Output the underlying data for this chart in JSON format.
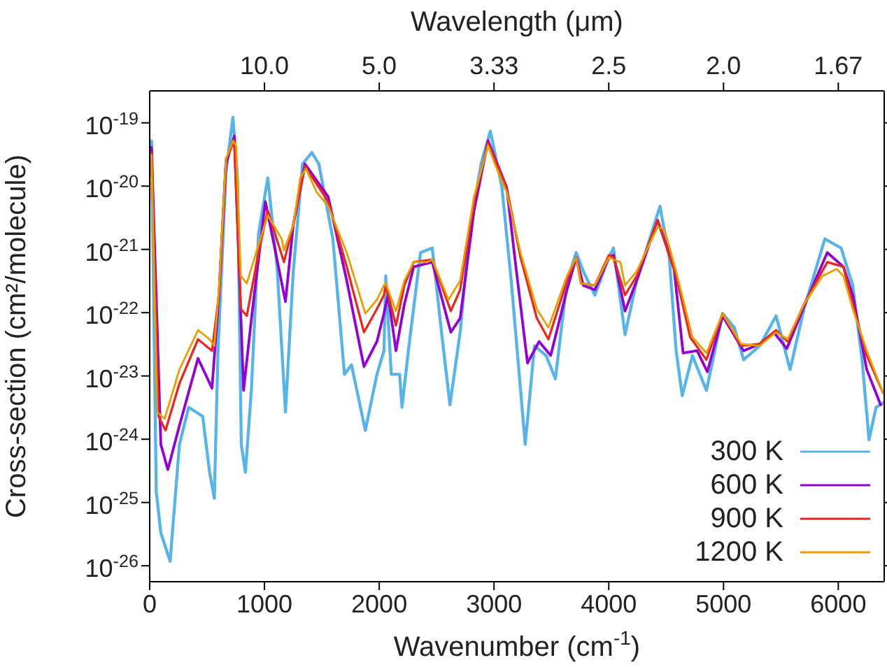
{
  "chart_data": {
    "type": "line",
    "xlabel": "Wavenumber (cm$^{-1}$)",
    "ylabel": "Cross-section (cm²/molecule)",
    "x2label": "Wavelength (μm)",
    "xlim": [
      0,
      6400
    ],
    "xticks": [
      0,
      1000,
      2000,
      3000,
      4000,
      5000,
      6000
    ],
    "annotations": [
      {
        "text": "10.0",
        "x": 1000
      },
      {
        "text": "5.0",
        "x": 2000
      },
      {
        "text": "3.33",
        "x": 3000
      },
      {
        "text": "2.5",
        "x": 4000
      },
      {
        "text": "2.0",
        "x": 5000
      },
      {
        "text": "1.67",
        "x": 6000
      }
    ],
    "log": "y",
    "ylim": [
      5.6e-27,
      3.2e-19
    ],
    "yticks": [
      {
        "value": 1e-19,
        "label": "10$^{-19}$"
      },
      {
        "value": 1e-20,
        "label": "10$^{-20}$"
      },
      {
        "value": 1e-21,
        "label": "10$^{-21}$"
      },
      {
        "value": 1e-22,
        "label": "10$^{-22}$"
      },
      {
        "value": 1e-23,
        "label": "10$^{-23}$"
      },
      {
        "value": 1e-24,
        "label": "10$^{-24}$"
      },
      {
        "value": 1e-25,
        "label": "10$^{-25}$"
      },
      {
        "value": 1e-26,
        "label": "10$^{-26}$"
      }
    ],
    "grid": false,
    "legend": "bottom right",
    "marker": "none",
    "line_style": "solid",
    "series": [
      {
        "name": "300 K",
        "color": "#56b4e9",
        "x": [
          16,
          57,
          97,
          178,
          259,
          340,
          462,
          522,
          563,
          595,
          664,
          725,
          765,
          798,
          834,
          887,
          948,
          1029,
          1110,
          1183,
          1251,
          1332,
          1413,
          1474,
          1596,
          1697,
          1758,
          1879,
          1980,
          2041,
          2057,
          2105,
          2178,
          2198,
          2259,
          2360,
          2462,
          2543,
          2616,
          2705,
          2786,
          2887,
          2968,
          3069,
          3150,
          3272,
          3353,
          3454,
          3535,
          3636,
          3717,
          3778,
          3879,
          4001,
          4041,
          4142,
          4243,
          4446,
          4527,
          4587,
          4640,
          4729,
          4851,
          4992,
          5094,
          5175,
          5316,
          5458,
          5580,
          5701,
          5883,
          6025,
          6126,
          6207,
          6268,
          6329,
          6398
        ],
        "values": [
          5.2e-20,
          1.5e-25,
          3.3e-26,
          1.18e-26,
          8.3e-25,
          3.2e-24,
          2.3e-24,
          3e-25,
          1.17e-25,
          2.5e-23,
          1.59e-20,
          1.23e-19,
          1.35e-20,
          8.3e-25,
          3e-25,
          6.4e-24,
          1.75e-21,
          1.35e-20,
          5.3e-22,
          2.7e-24,
          4.5e-22,
          2.24e-20,
          3.4e-20,
          2.24e-20,
          1.47e-21,
          1.06e-23,
          1.5e-23,
          1.38e-24,
          1.06e-23,
          2.5e-23,
          3.8e-22,
          1.06e-23,
          1.06e-23,
          3.2e-24,
          3e-23,
          8.9e-22,
          1.05e-21,
          4.9e-23,
          3.5e-24,
          4.9e-23,
          1.75e-21,
          2.24e-20,
          7.4e-20,
          9.6e-21,
          3.2e-22,
          8.3e-25,
          3e-23,
          2.1e-23,
          9e-24,
          3.2e-22,
          8.9e-22,
          4.5e-22,
          1.9e-22,
          7.5e-22,
          1.05e-21,
          4.5e-23,
          3.2e-22,
          4.8e-21,
          7.5e-22,
          2.5e-23,
          4.9e-24,
          2.1e-23,
          5.9e-24,
          9.7e-23,
          5.8e-23,
          1.8e-23,
          3e-23,
          8.9e-23,
          1.26e-23,
          1.15e-22,
          1.47e-21,
          1.05e-21,
          2.7e-22,
          1.8e-23,
          9.8e-25,
          3.2e-24,
          3.8e-24
        ]
      },
      {
        "name": "600 K",
        "color": "#9400d3",
        "x": [
          16,
          97,
          158,
          259,
          421,
          543,
          603,
          664,
          737,
          818,
          887,
          1008,
          1183,
          1251,
          1353,
          1555,
          1717,
          1867,
          1980,
          2041,
          2077,
          2146,
          2219,
          2300,
          2462,
          2624,
          2705,
          2826,
          2948,
          3110,
          3191,
          3292,
          3393,
          3494,
          3636,
          3717,
          3778,
          3879,
          4001,
          4041,
          4142,
          4243,
          4425,
          4567,
          4648,
          4770,
          4859,
          4992,
          5175,
          5316,
          5438,
          5551,
          5701,
          5904,
          6045,
          6126,
          6248,
          6369
        ],
        "values": [
          4.1e-20,
          8.3e-25,
          3.3e-25,
          1.64e-24,
          1.9e-23,
          6.4e-24,
          1.9e-22,
          2.24e-20,
          6.2e-20,
          5.9e-24,
          8.2e-23,
          5.7e-21,
          1.5e-22,
          2.45e-21,
          2.24e-20,
          6.8e-21,
          3.2e-22,
          1.4e-23,
          3.5e-23,
          9.7e-23,
          1.9e-22,
          2.5e-23,
          1.36e-22,
          5.3e-22,
          6.3e-22,
          4.9e-23,
          8.2e-23,
          4.1e-21,
          5.2e-20,
          9.6e-21,
          5.3e-22,
          1.6e-23,
          3.5e-23,
          2.1e-23,
          2.3e-22,
          7.5e-22,
          2.7e-22,
          2.3e-22,
          7.5e-22,
          8.1e-22,
          1.06e-22,
          3.2e-22,
          2.9e-21,
          5.3e-22,
          2.3e-23,
          2.5e-23,
          1.16e-23,
          8.9e-23,
          2.5e-23,
          3.2e-23,
          4.9e-23,
          2.7e-23,
          1.25e-22,
          8.9e-22,
          5.3e-22,
          1.9e-22,
          1.26e-23,
          3.5e-24
        ]
      },
      {
        "name": "900 K",
        "color": "#e8281e",
        "x": [
          16,
          77,
          138,
          259,
          421,
          543,
          603,
          664,
          737,
          794,
          846,
          948,
          1029,
          1170,
          1251,
          1353,
          1555,
          1717,
          1867,
          1980,
          2041,
          2057,
          2146,
          2219,
          2300,
          2462,
          2624,
          2705,
          2826,
          2948,
          3110,
          3231,
          3373,
          3474,
          3636,
          3717,
          3758,
          3879,
          4001,
          4041,
          4142,
          4243,
          4425,
          4587,
          4709,
          4851,
          4992,
          5154,
          5316,
          5458,
          5559,
          5701,
          5904,
          6045,
          6126,
          6248,
          6390
        ],
        "values": [
          3.4e-20,
          2.3e-24,
          1.38e-24,
          7.6e-24,
          3.8e-23,
          2.5e-23,
          1.9e-22,
          2.65e-20,
          5.2e-20,
          1.15e-22,
          8.9e-23,
          8.9e-22,
          4.1e-21,
          6.3e-22,
          2.45e-21,
          2.06e-20,
          5.7e-21,
          5.3e-22,
          4.9e-23,
          1.15e-22,
          1.9e-22,
          2.7e-22,
          6.3e-23,
          2.7e-22,
          6.3e-22,
          6.9e-22,
          1.06e-22,
          2.3e-22,
          5.7e-21,
          4.8e-20,
          9.6e-21,
          7.5e-22,
          8.2e-23,
          3.8e-23,
          3.2e-22,
          7.5e-22,
          2.9e-22,
          2.7e-22,
          8.1e-22,
          7.5e-22,
          1.9e-22,
          3.8e-22,
          2.9e-21,
          3.8e-22,
          4.1e-23,
          1.8e-23,
          9.7e-23,
          3e-23,
          3.2e-23,
          5.3e-23,
          3.5e-23,
          1.36e-22,
          6.3e-22,
          5.3e-22,
          1.36e-22,
          2.1e-23,
          5.4e-24
        ]
      },
      {
        "name": "1200 K",
        "color": "#e69f00",
        "x": [
          16,
          65,
          130,
          259,
          421,
          522,
          563,
          603,
          664,
          725,
          753,
          794,
          846,
          927,
          1029,
          1150,
          1170,
          1251,
          1312,
          1361,
          1454,
          1555,
          1717,
          1879,
          1980,
          2041,
          2057,
          2146,
          2219,
          2300,
          2421,
          2462,
          2603,
          2705,
          2826,
          2948,
          3008,
          3110,
          3231,
          3373,
          3474,
          3636,
          3717,
          3758,
          3879,
          4001,
          4041,
          4101,
          4142,
          4243,
          4425,
          4486,
          4587,
          4729,
          4851,
          4992,
          5154,
          5316,
          5458,
          5559,
          5701,
          5863,
          5985,
          6045,
          6126,
          6248,
          6390
        ],
        "values": [
          3.1e-20,
          2.7e-24,
          2.1e-24,
          1.26e-23,
          5.3e-23,
          3.8e-23,
          3e-23,
          2.3e-22,
          2.65e-20,
          5.2e-20,
          4.4e-20,
          3.8e-22,
          2.9e-22,
          8.9e-22,
          3.45e-21,
          1.47e-21,
          9.6e-22,
          2.45e-21,
          1.35e-20,
          1.89e-20,
          8.1e-21,
          4.8e-21,
          8.9e-22,
          9.7e-23,
          1.6e-22,
          2.7e-22,
          2.9e-22,
          1.06e-22,
          3.2e-22,
          6.3e-22,
          6.3e-22,
          6.9e-22,
          1.6e-22,
          3.2e-22,
          6.8e-21,
          4.4e-20,
          2.24e-20,
          8.1e-21,
          8.9e-22,
          1.15e-22,
          5.8e-23,
          3.8e-22,
          7.5e-22,
          2.9e-22,
          2.7e-22,
          7.5e-22,
          6.9e-22,
          6.3e-22,
          2.7e-22,
          4.5e-22,
          2.25e-21,
          2.07e-21,
          4.5e-22,
          4.1e-23,
          2.3e-23,
          9.7e-23,
          3.2e-23,
          3e-23,
          4.9e-23,
          3.8e-23,
          1.36e-22,
          3.8e-22,
          4.9e-22,
          3.8e-22,
          1.15e-22,
          2.5e-23,
          5.4e-24
        ]
      }
    ]
  }
}
